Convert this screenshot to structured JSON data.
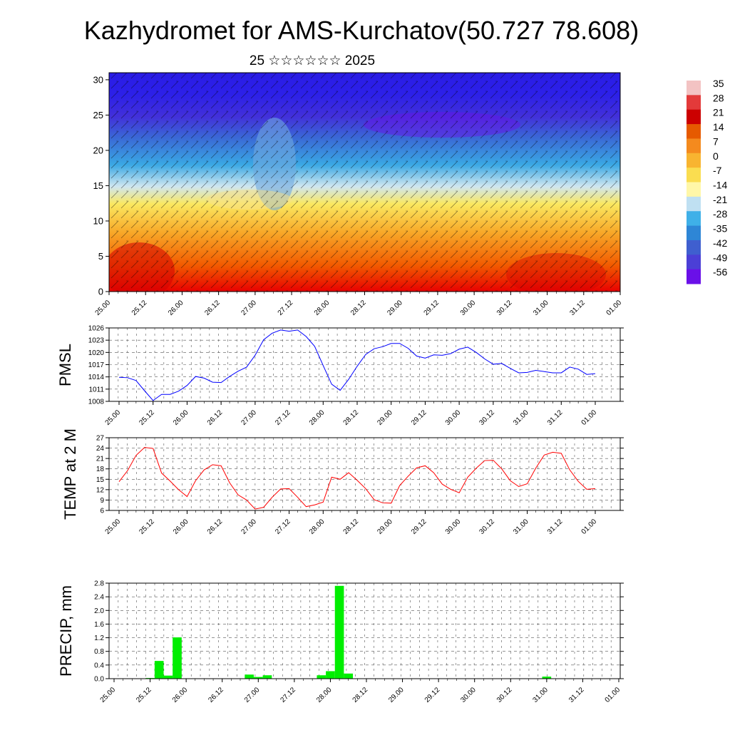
{
  "title": "Kazhydromet for AMS-Kurchatov(50.727 78.608)",
  "subtitle": "25 ☆☆☆☆☆☆ 2025",
  "time_ticks": [
    "25.00",
    "25.12",
    "26.00",
    "26.12",
    "27.00",
    "27.12",
    "28.00",
    "28.12",
    "29.00",
    "29.12",
    "30.00",
    "30.12",
    "31.00",
    "31.12",
    "01.00"
  ],
  "colorbar": {
    "labels": [
      "35",
      "28",
      "21",
      "14",
      "7",
      "0",
      "-7",
      "-14",
      "-21",
      "-28",
      "-35",
      "-42",
      "-49",
      "-56"
    ],
    "colors": [
      "#f3c3c3",
      "#e33a3a",
      "#cc0000",
      "#e65a00",
      "#f48a1e",
      "#f8b430",
      "#fadd50",
      "#fff7a8",
      "#bfe0f2",
      "#3fb0e8",
      "#2e86d6",
      "#3f5fcf",
      "#4b3fd6",
      "#6a10e8"
    ]
  },
  "chart_data": [
    {
      "type": "heatmap",
      "title": "",
      "xlabel": "",
      "ylabel": "",
      "x_ticks": [
        "25.00",
        "25.12",
        "26.00",
        "26.12",
        "27.00",
        "27.12",
        "28.00",
        "28.12",
        "29.00",
        "29.12",
        "30.00",
        "30.12",
        "31.00",
        "31.12",
        "01.00"
      ],
      "ylim": [
        0,
        31
      ],
      "y_ticks": [
        0,
        5,
        10,
        15,
        20,
        25,
        30
      ],
      "colorbar_range": [
        -56,
        35
      ],
      "overlay": "wind barbs"
    },
    {
      "type": "line",
      "ylabel": "PMSL",
      "ylim": [
        1008,
        1026
      ],
      "y_ticks": [
        1008,
        1011,
        1014,
        1017,
        1020,
        1023,
        1026
      ],
      "x_ticks": [
        "25.00",
        "25.12",
        "26.00",
        "26.12",
        "27.00",
        "27.12",
        "28.00",
        "28.12",
        "29.00",
        "29.12",
        "30.00",
        "30.12",
        "31.00",
        "31.12",
        "01.00"
      ],
      "color": "#0000ff",
      "values": [
        1013.9,
        1013.8,
        1013.1,
        1010.6,
        1008.2,
        1009.7,
        1009.7,
        1010.5,
        1011.9,
        1014.1,
        1013.7,
        1012.7,
        1012.6,
        1014.1,
        1015.4,
        1016.4,
        1019.3,
        1023.1,
        1024.7,
        1025.5,
        1025.2,
        1025.5,
        1023.9,
        1021.5,
        1016.8,
        1012.2,
        1010.7,
        1013.4,
        1016.6,
        1019.5,
        1020.9,
        1021.4,
        1022.2,
        1022.2,
        1021.0,
        1019.1,
        1018.6,
        1019.4,
        1019.3,
        1019.7,
        1020.8,
        1021.3,
        1020.0,
        1018.4,
        1017.1,
        1017.3,
        1016.1,
        1015.0,
        1015.1,
        1015.6,
        1015.3,
        1015.0,
        1015.0,
        1016.4,
        1015.9,
        1014.6,
        1014.8
      ]
    },
    {
      "type": "line",
      "ylabel": "TEMP at 2 M",
      "ylim": [
        6,
        27
      ],
      "y_ticks": [
        6,
        9,
        12,
        15,
        18,
        21,
        24,
        27
      ],
      "x_ticks": [
        "25.00",
        "25.12",
        "26.00",
        "26.12",
        "27.00",
        "27.12",
        "28.00",
        "28.12",
        "29.00",
        "29.12",
        "30.00",
        "30.12",
        "31.00",
        "31.12",
        "01.00"
      ],
      "color": "#ff0000",
      "values": [
        14.3,
        17.5,
        21.9,
        24.2,
        23.9,
        16.8,
        14.5,
        12.0,
        10.0,
        14.6,
        17.7,
        19.2,
        18.9,
        14.0,
        10.5,
        9.0,
        6.4,
        6.9,
        9.8,
        12.2,
        12.3,
        9.8,
        7.1,
        7.6,
        8.4,
        15.6,
        15.0,
        16.9,
        14.7,
        12.3,
        9.1,
        8.2,
        8.1,
        13.2,
        15.9,
        18.3,
        18.9,
        16.9,
        13.6,
        12.1,
        11.1,
        15.6,
        18.2,
        20.4,
        20.5,
        18.0,
        14.6,
        12.9,
        13.7,
        18.2,
        22.0,
        22.8,
        22.5,
        17.7,
        14.4,
        12.1,
        12.3
      ]
    },
    {
      "type": "bar",
      "ylabel": "PRECIP, mm",
      "ylim": [
        0,
        2.8
      ],
      "y_ticks": [
        "0.0",
        "0.4",
        "0.8",
        "1.2",
        "1.6",
        "2.0",
        "2.4",
        "2.8"
      ],
      "x_ticks": [
        "25.00",
        "25.12",
        "26.00",
        "26.12",
        "27.00",
        "27.12",
        "28.00",
        "28.12",
        "29.00",
        "29.12",
        "30.00",
        "30.12",
        "31.00",
        "31.12",
        "01.00"
      ],
      "color": "#00ee00",
      "values": [
        0,
        0,
        0,
        0,
        0.02,
        0.52,
        0.09,
        1.21,
        0,
        0,
        0,
        0,
        0,
        0,
        0,
        0.12,
        0.05,
        0.1,
        0,
        0,
        0,
        0,
        0,
        0.1,
        0.22,
        2.72,
        0.15,
        0,
        0,
        0,
        0,
        0,
        0,
        0,
        0,
        0,
        0,
        0,
        0,
        0,
        0,
        0,
        0,
        0,
        0,
        0,
        0,
        0,
        0.06,
        0,
        0,
        0,
        0,
        0,
        0,
        0,
        0
      ]
    }
  ]
}
